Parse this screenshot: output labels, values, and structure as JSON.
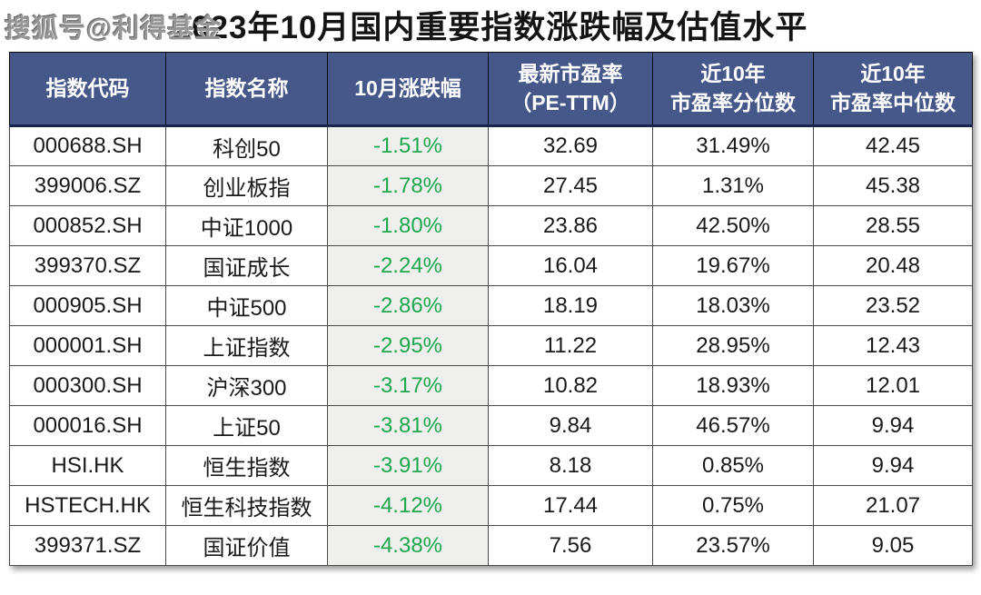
{
  "watermark": "搜狐号@利得基金",
  "header_display": {
    "pe": "最新市盈率\n（PE-TTM）",
    "percentile": "近10年\n市盈率分位数",
    "median": "近10年\n市盈率中位数"
  },
  "colors": {
    "header_bg": "#46588a",
    "header_text": "#ffffff",
    "change_text_green": "#1fa84e",
    "change_column_bg": "#efefee",
    "title_text": "#141414"
  },
  "chart_data": {
    "type": "table",
    "title": "2023年10月国内重要指数涨跌幅及估值水平",
    "columns": [
      "指数代码",
      "指数名称",
      "10月涨跌幅",
      "最新市盈率（PE-TTM）",
      "近10年市盈率分位数",
      "近10年市盈率中位数"
    ],
    "rows": [
      [
        "000688.SH",
        "科创50",
        "-1.51%",
        "32.69",
        "31.49%",
        "42.45"
      ],
      [
        "399006.SZ",
        "创业板指",
        "-1.78%",
        "27.45",
        "1.31%",
        "45.38"
      ],
      [
        "000852.SH",
        "中证1000",
        "-1.80%",
        "23.86",
        "42.50%",
        "28.55"
      ],
      [
        "399370.SZ",
        "国证成长",
        "-2.24%",
        "16.04",
        "19.67%",
        "20.48"
      ],
      [
        "000905.SH",
        "中证500",
        "-2.86%",
        "18.19",
        "18.03%",
        "23.52"
      ],
      [
        "000001.SH",
        "上证指数",
        "-2.95%",
        "11.22",
        "28.95%",
        "12.43"
      ],
      [
        "000300.SH",
        "沪深300",
        "-3.17%",
        "10.82",
        "18.93%",
        "12.01"
      ],
      [
        "000016.SH",
        "上证50",
        "-3.81%",
        "9.84",
        "46.57%",
        "9.94"
      ],
      [
        "HSI.HK",
        "恒生指数",
        "-3.91%",
        "8.18",
        "0.85%",
        "9.94"
      ],
      [
        "HSTECH.HK",
        "恒生科技指数",
        "-4.12%",
        "17.44",
        "0.75%",
        "21.07"
      ],
      [
        "399371.SZ",
        "国证价值",
        "-4.38%",
        "7.56",
        "23.57%",
        "9.05"
      ]
    ]
  }
}
